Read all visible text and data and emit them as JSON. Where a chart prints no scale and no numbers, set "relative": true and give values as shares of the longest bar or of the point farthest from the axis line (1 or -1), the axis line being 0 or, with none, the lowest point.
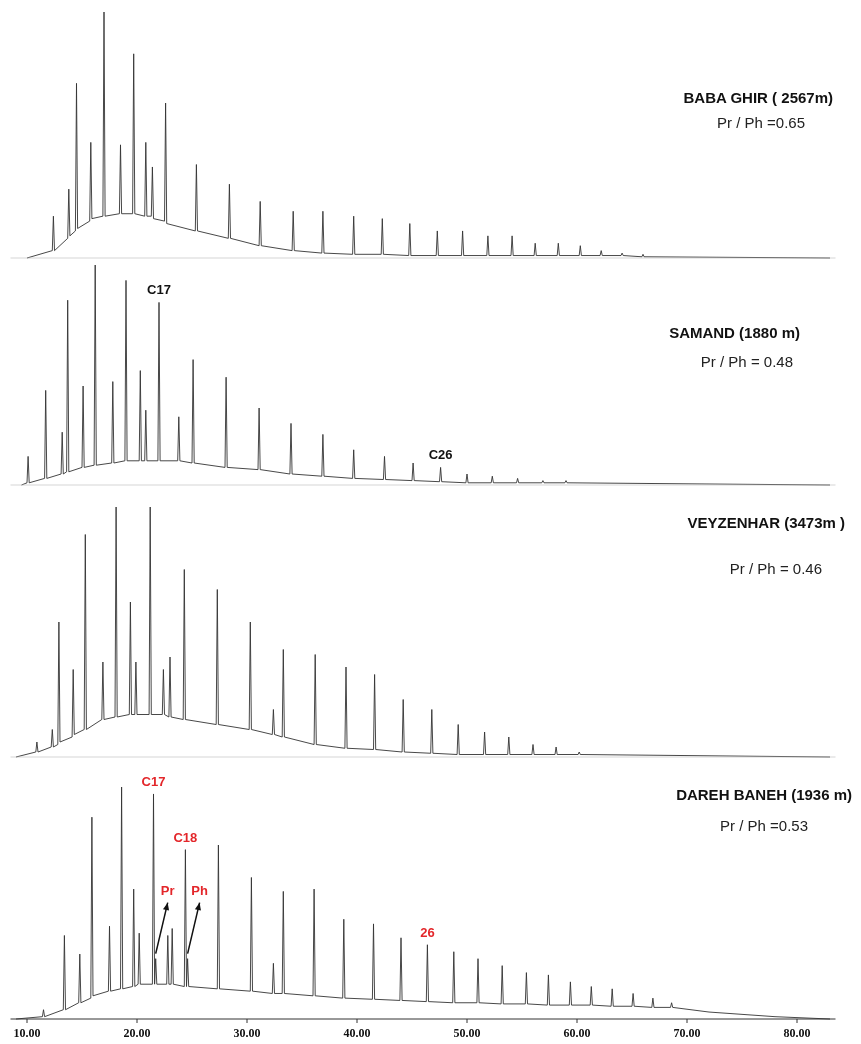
{
  "chart_data": [
    {
      "type": "line",
      "title": "BABA GHIR ( 2567m)",
      "subtitle": "Pr / Ph =0.65",
      "relative": true,
      "xlim": [
        8.5,
        83.5
      ],
      "xticks": [
        {
          "value": 10,
          "label": null
        },
        {
          "value": 20,
          "label": null
        },
        {
          "value": 30,
          "label": null
        },
        {
          "value": 40,
          "label": null
        },
        {
          "value": 50,
          "label": null
        },
        {
          "value": 60,
          "label": null
        },
        {
          "value": 70,
          "label": null
        },
        {
          "value": 80,
          "label": null
        }
      ],
      "tick_labels": false,
      "series": [
        {
          "color": "#333333",
          "x": [
            10.0,
            12.3,
            12.4,
            12.5,
            13.7,
            13.8,
            13.9,
            14.4,
            14.5,
            14.6,
            15.7,
            15.8,
            15.9,
            16.9,
            17.0,
            17.1,
            18.4,
            18.5,
            18.6,
            19.6,
            19.7,
            19.8,
            20.7,
            20.8,
            20.9,
            21.3,
            21.4,
            21.5,
            22.5,
            22.6,
            22.7,
            25.3,
            25.4,
            25.5,
            28.3,
            28.4,
            28.5,
            31.1,
            31.2,
            31.3,
            34.1,
            34.2,
            34.3,
            36.8,
            36.9,
            37.0,
            39.6,
            39.7,
            39.8,
            42.2,
            42.3,
            42.4,
            44.7,
            44.8,
            44.9,
            47.2,
            47.3,
            47.4,
            49.5,
            49.6,
            49.7,
            51.8,
            51.9,
            52.0,
            54.0,
            54.1,
            54.2,
            56.1,
            56.2,
            56.3,
            58.2,
            58.3,
            58.4,
            60.2,
            60.3,
            60.4,
            62.1,
            62.2,
            62.3,
            64.0,
            64.1,
            64.2,
            65.9,
            66.0,
            66.1,
            83.0
          ],
          "values": [
            0,
            0.03,
            0.17,
            0.03,
            0.08,
            0.28,
            0.09,
            0.11,
            0.71,
            0.12,
            0.15,
            0.47,
            0.16,
            0.17,
            1.0,
            0.17,
            0.18,
            0.46,
            0.18,
            0.18,
            0.83,
            0.18,
            0.17,
            0.47,
            0.17,
            0.17,
            0.37,
            0.16,
            0.15,
            0.63,
            0.14,
            0.11,
            0.38,
            0.11,
            0.08,
            0.3,
            0.08,
            0.05,
            0.23,
            0.05,
            0.03,
            0.19,
            0.03,
            0.02,
            0.19,
            0.02,
            0.015,
            0.17,
            0.015,
            0.015,
            0.16,
            0.015,
            0.01,
            0.14,
            0.01,
            0.01,
            0.11,
            0.01,
            0.01,
            0.11,
            0.01,
            0.01,
            0.09,
            0.01,
            0.01,
            0.09,
            0.01,
            0.01,
            0.06,
            0.01,
            0.01,
            0.06,
            0.01,
            0.01,
            0.05,
            0.01,
            0.01,
            0.03,
            0.01,
            0.01,
            0.02,
            0.01,
            0.005,
            0.015,
            0.005,
            0
          ]
        }
      ]
    },
    {
      "type": "line",
      "title": "SAMAND (1880 m)",
      "subtitle": "Pr / Ph = 0.48",
      "relative": true,
      "xlim": [
        8.5,
        83.5
      ],
      "xticks": [
        {
          "value": 10,
          "label": null
        },
        {
          "value": 20,
          "label": null
        },
        {
          "value": 30,
          "label": null
        },
        {
          "value": 40,
          "label": null
        },
        {
          "value": 50,
          "label": null
        },
        {
          "value": 60,
          "label": null
        },
        {
          "value": 70,
          "label": null
        },
        {
          "value": 80,
          "label": null
        }
      ],
      "tick_labels": false,
      "annotations": [
        {
          "text": "C17",
          "x": 22.0,
          "y": 0.83
        },
        {
          "text": "C26",
          "x": 47.6,
          "y": 0.08
        }
      ],
      "series": [
        {
          "color": "#333333",
          "x": [
            9.5,
            10.0,
            10.1,
            10.2,
            11.6,
            11.7,
            11.8,
            13.1,
            13.2,
            13.3,
            13.6,
            13.7,
            13.8,
            15.0,
            15.1,
            15.2,
            16.1,
            16.2,
            16.3,
            17.7,
            17.8,
            17.9,
            18.9,
            19.0,
            19.1,
            20.2,
            20.3,
            20.4,
            20.7,
            20.8,
            20.9,
            21.9,
            22.0,
            22.1,
            23.7,
            23.8,
            23.9,
            25.0,
            25.1,
            25.2,
            28.0,
            28.1,
            28.2,
            31.0,
            31.1,
            31.2,
            33.9,
            34.0,
            34.1,
            36.8,
            36.9,
            37.0,
            39.6,
            39.7,
            39.8,
            42.4,
            42.5,
            42.6,
            45.0,
            45.1,
            45.2,
            47.5,
            47.6,
            47.7,
            49.9,
            50.0,
            50.1,
            52.2,
            52.3,
            52.4,
            54.5,
            54.6,
            54.7,
            56.8,
            56.9,
            57.0,
            58.9,
            59.0,
            59.1,
            83.0
          ],
          "values": [
            0,
            0.01,
            0.13,
            0.01,
            0.03,
            0.43,
            0.03,
            0.05,
            0.24,
            0.05,
            0.06,
            0.84,
            0.06,
            0.08,
            0.45,
            0.08,
            0.09,
            1.0,
            0.09,
            0.1,
            0.47,
            0.1,
            0.11,
            0.93,
            0.11,
            0.11,
            0.52,
            0.11,
            0.11,
            0.34,
            0.11,
            0.11,
            0.83,
            0.11,
            0.11,
            0.31,
            0.11,
            0.1,
            0.57,
            0.1,
            0.08,
            0.49,
            0.08,
            0.07,
            0.35,
            0.07,
            0.05,
            0.28,
            0.05,
            0.04,
            0.23,
            0.04,
            0.03,
            0.16,
            0.03,
            0.025,
            0.13,
            0.025,
            0.02,
            0.1,
            0.02,
            0.015,
            0.08,
            0.015,
            0.01,
            0.05,
            0.01,
            0.01,
            0.04,
            0.01,
            0.01,
            0.03,
            0.01,
            0.01,
            0.02,
            0.01,
            0.01,
            0.02,
            0.01,
            0
          ]
        }
      ]
    },
    {
      "type": "line",
      "title": "VEYZENHAR (3473m )",
      "subtitle": "Pr / Ph = 0.46",
      "relative": true,
      "xlim": [
        8.5,
        83.5
      ],
      "xticks": [
        {
          "value": 10,
          "label": null
        },
        {
          "value": 20,
          "label": null
        },
        {
          "value": 30,
          "label": null
        },
        {
          "value": 40,
          "label": null
        },
        {
          "value": 50,
          "label": null
        },
        {
          "value": 60,
          "label": null
        },
        {
          "value": 70,
          "label": null
        },
        {
          "value": 80,
          "label": null
        }
      ],
      "tick_labels": false,
      "series": [
        {
          "color": "#333333",
          "x": [
            9.0,
            10.8,
            10.9,
            11.0,
            12.2,
            12.3,
            12.4,
            12.8,
            12.9,
            13.0,
            14.1,
            14.2,
            14.3,
            15.2,
            15.3,
            15.4,
            16.8,
            16.9,
            17.0,
            18.0,
            18.1,
            18.2,
            19.3,
            19.4,
            19.5,
            19.8,
            19.9,
            20.0,
            21.1,
            21.2,
            21.3,
            22.3,
            22.4,
            22.5,
            22.9,
            23.0,
            23.1,
            24.2,
            24.3,
            24.4,
            27.2,
            27.3,
            27.4,
            30.2,
            30.3,
            30.4,
            32.3,
            32.4,
            32.5,
            33.2,
            33.3,
            33.4,
            36.1,
            36.2,
            36.3,
            38.9,
            39.0,
            39.1,
            41.5,
            41.6,
            41.7,
            44.1,
            44.2,
            44.3,
            46.7,
            46.8,
            46.9,
            49.1,
            49.2,
            49.3,
            51.5,
            51.6,
            51.7,
            53.7,
            53.8,
            53.9,
            55.9,
            56.0,
            56.1,
            58.0,
            58.1,
            58.2,
            60.1,
            60.2,
            60.3,
            83.0
          ],
          "values": [
            0,
            0.02,
            0.06,
            0.02,
            0.04,
            0.11,
            0.04,
            0.05,
            0.54,
            0.06,
            0.08,
            0.35,
            0.09,
            0.11,
            0.89,
            0.11,
            0.15,
            0.38,
            0.15,
            0.16,
            1.0,
            0.16,
            0.17,
            0.62,
            0.17,
            0.17,
            0.38,
            0.17,
            0.17,
            1.0,
            0.17,
            0.17,
            0.35,
            0.17,
            0.16,
            0.4,
            0.16,
            0.15,
            0.75,
            0.15,
            0.13,
            0.67,
            0.13,
            0.11,
            0.54,
            0.11,
            0.09,
            0.19,
            0.09,
            0.08,
            0.43,
            0.08,
            0.05,
            0.41,
            0.05,
            0.035,
            0.36,
            0.035,
            0.03,
            0.33,
            0.03,
            0.02,
            0.23,
            0.02,
            0.015,
            0.19,
            0.015,
            0.01,
            0.13,
            0.01,
            0.01,
            0.1,
            0.01,
            0.01,
            0.08,
            0.01,
            0.01,
            0.05,
            0.01,
            0.01,
            0.04,
            0.01,
            0.01,
            0.02,
            0.01,
            0
          ]
        }
      ]
    },
    {
      "type": "line",
      "title": "DAREH BANEH (1936 m)",
      "subtitle": "Pr / Ph =0.53",
      "relative": true,
      "xlim": [
        8.5,
        83.5
      ],
      "xticks": [
        {
          "value": 10,
          "label": "10.00"
        },
        {
          "value": 20,
          "label": "20.00"
        },
        {
          "value": 30,
          "label": "30.00"
        },
        {
          "value": 40,
          "label": "40.00"
        },
        {
          "value": 50,
          "label": "50.00"
        },
        {
          "value": 60,
          "label": "60.00"
        },
        {
          "value": 70,
          "label": "70.00"
        },
        {
          "value": 80,
          "label": "80.00"
        }
      ],
      "annotations": [
        {
          "text": "C17",
          "x": 21.5,
          "y": 0.97
        },
        {
          "text": "C18",
          "x": 24.4,
          "y": 0.73
        },
        {
          "text": "Pr",
          "x": 21.7,
          "y": 0.26
        },
        {
          "text": "Ph",
          "x": 24.6,
          "y": 0.26
        },
        {
          "text": "26",
          "x": 46.4,
          "y": 0.32
        }
      ],
      "series": [
        {
          "color": "#333333",
          "x": [
            9.0,
            11.4,
            11.5,
            11.6,
            13.3,
            13.4,
            13.5,
            14.7,
            14.8,
            14.9,
            15.8,
            15.9,
            16.0,
            17.4,
            17.5,
            17.6,
            18.5,
            18.6,
            18.7,
            19.6,
            19.7,
            19.8,
            20.1,
            20.2,
            20.3,
            21.4,
            21.5,
            21.6,
            21.7,
            21.8,
            22.7,
            22.8,
            22.9,
            23.1,
            23.2,
            23.3,
            24.3,
            24.4,
            24.5,
            24.6,
            24.7,
            27.3,
            27.4,
            27.5,
            30.3,
            30.4,
            30.5,
            32.3,
            32.4,
            32.5,
            33.2,
            33.3,
            33.4,
            36.0,
            36.1,
            36.2,
            38.7,
            38.8,
            38.9,
            41.4,
            41.5,
            41.6,
            43.9,
            44.0,
            44.1,
            46.3,
            46.4,
            46.5,
            48.7,
            48.8,
            48.9,
            50.9,
            51.0,
            51.1,
            53.1,
            53.2,
            53.3,
            55.3,
            55.4,
            55.5,
            57.3,
            57.4,
            57.5,
            59.3,
            59.4,
            59.5,
            61.2,
            61.3,
            61.4,
            63.1,
            63.2,
            63.3,
            65.0,
            65.1,
            65.2,
            66.8,
            66.9,
            67.0,
            68.5,
            68.6,
            68.7,
            72.0,
            78.0,
            83.0
          ],
          "values": [
            0,
            0.01,
            0.04,
            0.01,
            0.04,
            0.36,
            0.04,
            0.07,
            0.28,
            0.07,
            0.09,
            0.87,
            0.1,
            0.12,
            0.4,
            0.12,
            0.13,
            1.0,
            0.13,
            0.14,
            0.56,
            0.14,
            0.15,
            0.37,
            0.15,
            0.15,
            0.97,
            0.15,
            0.26,
            0.15,
            0.15,
            0.36,
            0.15,
            0.15,
            0.39,
            0.15,
            0.14,
            0.73,
            0.14,
            0.26,
            0.14,
            0.13,
            0.75,
            0.13,
            0.12,
            0.61,
            0.12,
            0.11,
            0.24,
            0.11,
            0.11,
            0.55,
            0.11,
            0.1,
            0.56,
            0.1,
            0.09,
            0.43,
            0.09,
            0.085,
            0.41,
            0.085,
            0.08,
            0.35,
            0.08,
            0.075,
            0.32,
            0.075,
            0.07,
            0.29,
            0.07,
            0.07,
            0.26,
            0.07,
            0.065,
            0.23,
            0.065,
            0.065,
            0.2,
            0.065,
            0.06,
            0.19,
            0.06,
            0.06,
            0.16,
            0.06,
            0.06,
            0.14,
            0.06,
            0.055,
            0.13,
            0.055,
            0.055,
            0.11,
            0.055,
            0.05,
            0.09,
            0.05,
            0.05,
            0.07,
            0.05,
            0.03,
            0.01,
            0
          ]
        }
      ]
    }
  ]
}
